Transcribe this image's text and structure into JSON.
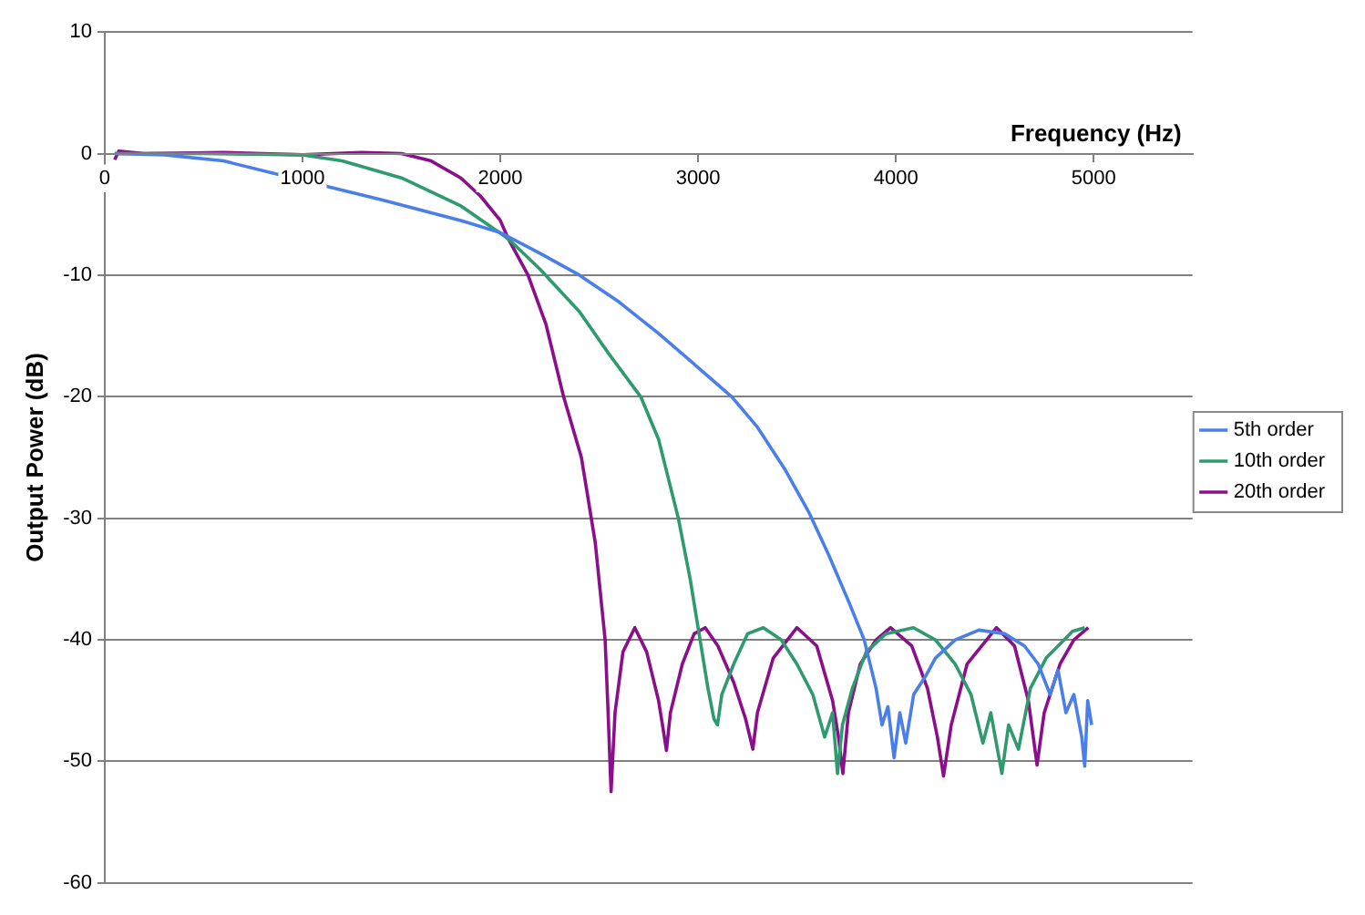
{
  "chart_data": {
    "type": "line",
    "xlabel": "Frequency (Hz)",
    "ylabel": "Output Power (dB)",
    "xlim": [
      0,
      5500
    ],
    "xticks": [
      0,
      1000,
      2000,
      3000,
      4000,
      5000
    ],
    "ylim": [
      -60,
      10
    ],
    "yticks": [
      -60,
      -50,
      -40,
      -30,
      -20,
      -10,
      0,
      10
    ],
    "grid": "y",
    "legend": "right",
    "marker": "none",
    "line_style": "solid",
    "series": [
      {
        "name": "5th order",
        "color": "#4a7fea",
        "x": [
          50,
          300,
          600,
          1000,
          1400,
          1800,
          2000,
          2200,
          2400,
          2600,
          2800,
          3000,
          3170,
          3300,
          3440,
          3560,
          3660,
          3760,
          3840,
          3900,
          3930,
          3960,
          3991,
          4020,
          4050,
          4090,
          4150,
          4200,
          4300,
          4420,
          4550,
          4650,
          4720,
          4780,
          4820,
          4860,
          4900,
          4940,
          4955,
          4970,
          4990
        ],
        "values": [
          0,
          -0.1,
          -0.6,
          -2.2,
          -3.8,
          -5.5,
          -6.5,
          -8.2,
          -10,
          -12.2,
          -14.8,
          -17.6,
          -20,
          -22.5,
          -26,
          -29.5,
          -33,
          -36.8,
          -40,
          -44,
          -47,
          -45.5,
          -49.7,
          -46,
          -48.5,
          -44.5,
          -43,
          -41.5,
          -40,
          -39.2,
          -39.5,
          -40.5,
          -42,
          -44.5,
          -42.5,
          -46,
          -44.5,
          -48,
          -50.4,
          -45,
          -47
        ]
      },
      {
        "name": "10th order",
        "color": "#2e9a6e",
        "x": [
          50,
          500,
          1000,
          1200,
          1500,
          1800,
          2040,
          2200,
          2400,
          2550,
          2710,
          2800,
          2900,
          2960,
          3010,
          3050,
          3080,
          3098,
          3120,
          3180,
          3250,
          3330,
          3420,
          3500,
          3580,
          3640,
          3680,
          3705,
          3730,
          3780,
          3850,
          3950,
          4089,
          4200,
          4300,
          4380,
          4440,
          4480,
          4536,
          4570,
          4620,
          4680,
          4760,
          4893,
          4955
        ],
        "values": [
          0,
          0,
          -0.1,
          -0.6,
          -2,
          -4.3,
          -7,
          -9.5,
          -13,
          -16.5,
          -20,
          -23.5,
          -30,
          -35,
          -40,
          -44,
          -46.5,
          -47,
          -44.5,
          -42,
          -39.5,
          -39,
          -40,
          -42,
          -44.5,
          -48,
          -46,
          -51,
          -47,
          -44,
          -41,
          -39.5,
          -39,
          -40,
          -42,
          -44.5,
          -48.5,
          -46,
          -51,
          -47,
          -49,
          -44,
          -41.5,
          -39.3,
          -39
        ]
      },
      {
        "name": "20th order",
        "color": "#8b0f8b",
        "x": [
          50,
          70,
          200,
          600,
          1000,
          1300,
          1500,
          1650,
          1800,
          1900,
          2000,
          2040,
          2140,
          2230,
          2320,
          2410,
          2480,
          2530,
          2545,
          2560,
          2580,
          2620,
          2680,
          2740,
          2800,
          2820,
          2840,
          2860,
          2920,
          2980,
          3036,
          3100,
          3180,
          3240,
          3277,
          3300,
          3380,
          3500,
          3600,
          3680,
          3710,
          3732,
          3760,
          3820,
          3900,
          3973,
          4080,
          4160,
          4210,
          4241,
          4280,
          4360,
          4509,
          4600,
          4670,
          4714,
          4750,
          4830,
          4900,
          4973
        ],
        "values": [
          -0.5,
          0.2,
          0,
          0.1,
          -0.1,
          0.1,
          0,
          -0.6,
          -2,
          -3.5,
          -5.5,
          -7,
          -10,
          -14,
          -20,
          -25,
          -32,
          -40,
          -46,
          -52.5,
          -46,
          -41,
          -39,
          -41,
          -45,
          -47,
          -49.1,
          -46,
          -42,
          -39.5,
          -39,
          -40.5,
          -43.5,
          -46.5,
          -49,
          -46,
          -41.5,
          -39,
          -40.5,
          -45,
          -48,
          -51,
          -46,
          -42,
          -40,
          -39,
          -40.5,
          -44,
          -48,
          -51.2,
          -47,
          -42,
          -39,
          -40.5,
          -45,
          -50.3,
          -46,
          -42,
          -40,
          -39
        ]
      }
    ]
  }
}
